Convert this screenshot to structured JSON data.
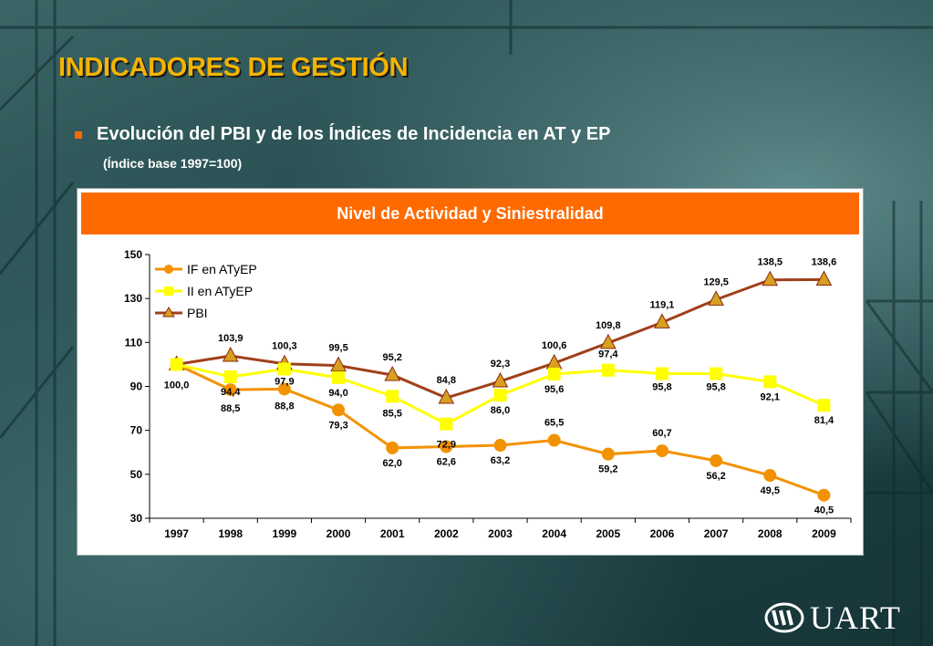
{
  "slide": {
    "title": "INDICADORES DE GESTIÓN",
    "subtitle": "Evolución del PBI y de los Índices de Incidencia en AT y EP",
    "note": "(Índice base 1997=100)",
    "logo_text": "UART"
  },
  "colors": {
    "title": "#f5b400",
    "header": "#ff6a00",
    "if_series": "#f39200",
    "ii_series": "#ffff00",
    "pbi_line": "#a0401a",
    "pbi_marker": "#d8a020"
  },
  "chart_data": {
    "type": "line",
    "title": "Nivel de Actividad y Siniestralidad",
    "categories": [
      "1997",
      "1998",
      "1999",
      "2000",
      "2001",
      "2002",
      "2003",
      "2004",
      "2005",
      "2006",
      "2007",
      "2008",
      "2009"
    ],
    "ylim": [
      30,
      150
    ],
    "yticks": [
      30,
      50,
      70,
      90,
      110,
      130,
      150
    ],
    "legend_position": "top-left",
    "grid": false,
    "series": [
      {
        "name": "IF en ATyEP",
        "marker": "circle",
        "values": [
          100.0,
          88.5,
          88.8,
          79.3,
          62.0,
          62.6,
          63.2,
          65.5,
          59.2,
          60.7,
          56.2,
          49.5,
          40.5
        ],
        "labels": [
          "100,0",
          "88,5",
          "88,8",
          "79,3",
          "62,0",
          "62,6",
          "63,2",
          "65,5",
          "59,2",
          "60,7",
          "56,2",
          "49,5",
          "40,5"
        ]
      },
      {
        "name": "II en ATyEP",
        "marker": "square",
        "values": [
          100.0,
          94.4,
          97.9,
          94.0,
          85.5,
          72.9,
          86.0,
          95.6,
          97.4,
          95.8,
          95.8,
          92.1,
          81.4
        ],
        "labels": [
          "100,0",
          "94,4",
          "97,9",
          "94,0",
          "85,5",
          "72,9",
          "86,0",
          "95,6",
          "97,4",
          "95,8",
          "95,8",
          "92,1",
          "81,4"
        ]
      },
      {
        "name": "PBI",
        "marker": "triangle",
        "values": [
          100.0,
          103.9,
          100.3,
          99.5,
          95.2,
          84.8,
          92.3,
          100.6,
          109.8,
          119.1,
          129.5,
          138.5,
          138.6
        ],
        "labels": [
          "100,0",
          "103,9",
          "100,3",
          "99,5",
          "95,2",
          "84,8",
          "92,3",
          "100,6",
          "109,8",
          "119,1",
          "129,5",
          "138,5",
          "138,6"
        ]
      }
    ]
  }
}
